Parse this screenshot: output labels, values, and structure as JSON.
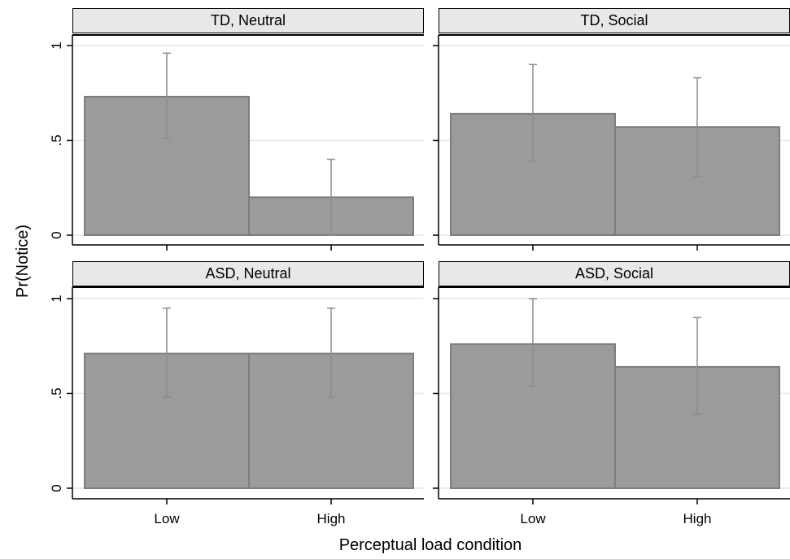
{
  "chart_data": {
    "type": "bar",
    "ylabel": "Pr(Notice)",
    "xlabel": "Perceptual load condition",
    "categories": [
      "Low",
      "High"
    ],
    "yticks": [
      0,
      0.5,
      1
    ],
    "ytick_labels": [
      "0",
      ".5",
      "1"
    ],
    "ylim": [
      0,
      1.06
    ],
    "grid": true,
    "colors": {
      "bar_fill": "#9b9b9b",
      "bar_stroke": "#7d7d7d",
      "error_bar": "#8c8c8c",
      "strip_fill": "#e8e8e8",
      "grid": "#e6e6e6"
    },
    "panels": [
      {
        "title": "TD, Neutral",
        "values": [
          0.73,
          0.2
        ],
        "ci_low": [
          0.51,
          0.0
        ],
        "ci_high": [
          0.96,
          0.4
        ]
      },
      {
        "title": "TD, Social",
        "values": [
          0.64,
          0.57
        ],
        "ci_low": [
          0.39,
          0.31
        ],
        "ci_high": [
          0.9,
          0.83
        ]
      },
      {
        "title": "ASD, Neutral",
        "values": [
          0.71,
          0.71
        ],
        "ci_low": [
          0.48,
          0.48
        ],
        "ci_high": [
          0.95,
          0.95
        ]
      },
      {
        "title": "ASD, Social",
        "values": [
          0.76,
          0.64
        ],
        "ci_low": [
          0.54,
          0.39
        ],
        "ci_high": [
          1.0,
          0.9
        ]
      }
    ]
  }
}
